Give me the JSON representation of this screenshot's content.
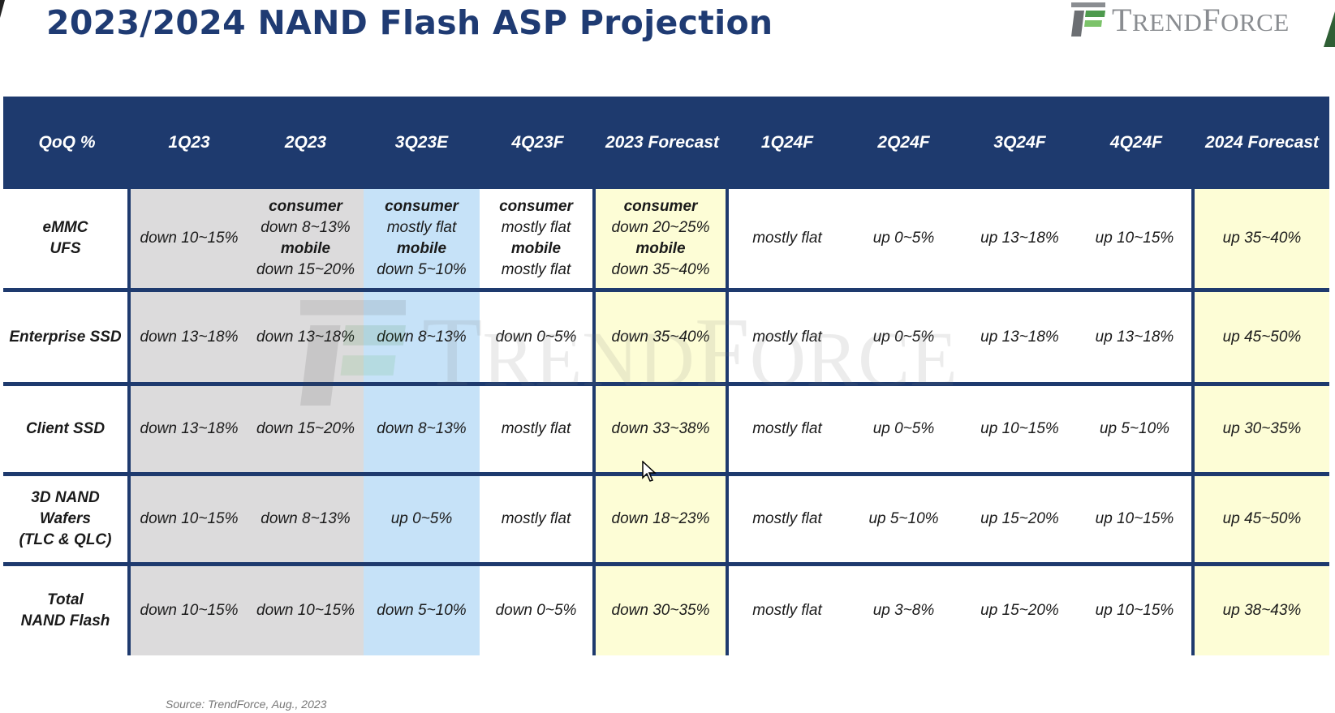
{
  "title": "2023/2024 NAND Flash ASP Projection",
  "logo": {
    "initial1": "T",
    "rest1": "REND",
    "initial2": "F",
    "rest2": "ORCE"
  },
  "colors": {
    "header_bg": "#1e3a6e",
    "title": "#1f3b73",
    "col_1q23": "#dcdbdc",
    "col_2q23": "#dcdbdc",
    "col_3q23e": "#c6e2f8",
    "col_forecast": "#fdfdd6",
    "logo_gray": "#8a8d91",
    "logo_green": "#4e9a4e"
  },
  "table": {
    "columns": [
      "QoQ %",
      "1Q23",
      "2Q23",
      "3Q23E",
      "4Q23F",
      "2023 Forecast",
      "1Q24F",
      "2Q24F",
      "3Q24F",
      "4Q24F",
      "2024 Forecast"
    ],
    "rows": [
      {
        "label": [
          "eMMC",
          "UFS"
        ],
        "cells": [
          [
            "down 10~15%"
          ],
          [
            "consumer",
            "down 8~13%",
            "mobile",
            "down 15~20%"
          ],
          [
            "consumer",
            "mostly flat",
            "mobile",
            "down 5~10%"
          ],
          [
            "consumer",
            "mostly flat",
            "mobile",
            "mostly flat"
          ],
          [
            "consumer",
            "down 20~25%",
            "mobile",
            "down 35~40%"
          ],
          [
            "mostly flat"
          ],
          [
            "up 0~5%"
          ],
          [
            "up 13~18%"
          ],
          [
            "up 10~15%"
          ],
          [
            "up 35~40%"
          ]
        ]
      },
      {
        "label": [
          "Enterprise SSD"
        ],
        "cells": [
          [
            "down 13~18%"
          ],
          [
            "down 13~18%"
          ],
          [
            "down 8~13%"
          ],
          [
            "down 0~5%"
          ],
          [
            "down 35~40%"
          ],
          [
            "mostly flat"
          ],
          [
            "up 0~5%"
          ],
          [
            "up 13~18%"
          ],
          [
            "up 13~18%"
          ],
          [
            "up 45~50%"
          ]
        ]
      },
      {
        "label": [
          "Client SSD"
        ],
        "cells": [
          [
            "down 13~18%"
          ],
          [
            "down 15~20%"
          ],
          [
            "down 8~13%"
          ],
          [
            "mostly flat"
          ],
          [
            "down 33~38%"
          ],
          [
            "mostly flat"
          ],
          [
            "up 0~5%"
          ],
          [
            "up 10~15%"
          ],
          [
            "up 5~10%"
          ],
          [
            "up 30~35%"
          ]
        ]
      },
      {
        "label": [
          "3D NAND",
          "Wafers",
          "(TLC & QLC)"
        ],
        "cells": [
          [
            "down 10~15%"
          ],
          [
            "down 8~13%"
          ],
          [
            "up 0~5%"
          ],
          [
            "mostly flat"
          ],
          [
            "down 18~23%"
          ],
          [
            "mostly flat"
          ],
          [
            "up 5~10%"
          ],
          [
            "up 15~20%"
          ],
          [
            "up 10~15%"
          ],
          [
            "up 45~50%"
          ]
        ]
      },
      {
        "label": [
          "Total",
          "NAND Flash"
        ],
        "cells": [
          [
            "down 10~15%"
          ],
          [
            "down 10~15%"
          ],
          [
            "down 5~10%"
          ],
          [
            "down 0~5%"
          ],
          [
            "down 30~35%"
          ],
          [
            "mostly flat"
          ],
          [
            "up 3~8%"
          ],
          [
            "up 15~20%"
          ],
          [
            "up 10~15%"
          ],
          [
            "up 38~43%"
          ]
        ]
      }
    ]
  },
  "source": "Source: TrendForce, Aug., 2023"
}
